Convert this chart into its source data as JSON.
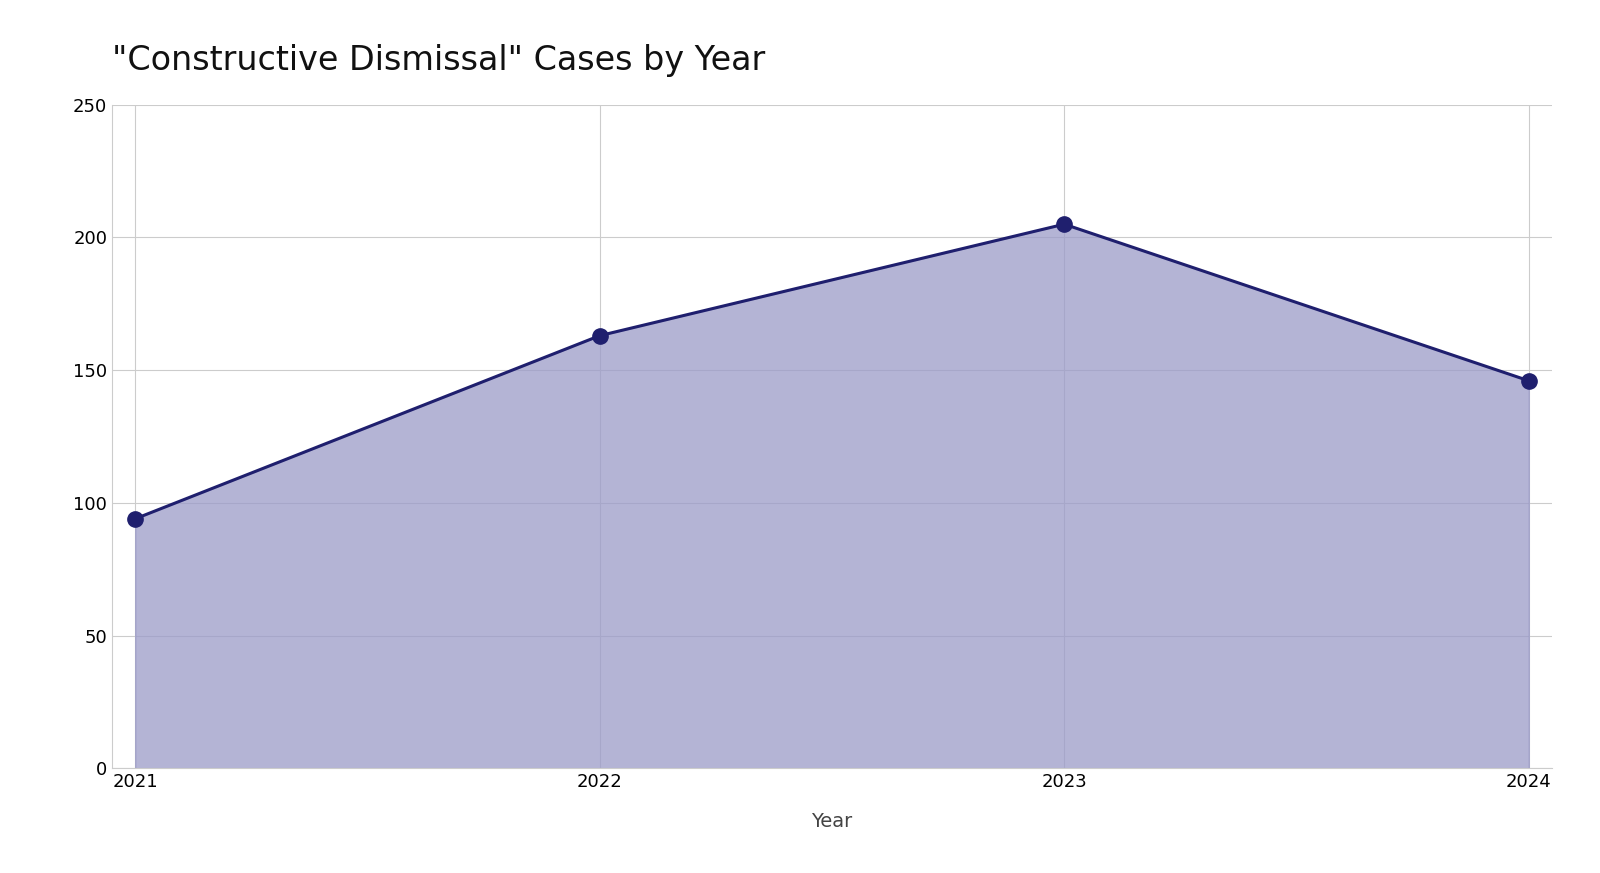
{
  "title": "\"Constructive Dismissal\" Cases by Year",
  "xlabel": "Year",
  "ylabel": "",
  "years": [
    2021,
    2022,
    2023,
    2024
  ],
  "values": [
    94,
    163,
    205,
    146
  ],
  "ylim": [
    0,
    250
  ],
  "yticks": [
    0,
    50,
    100,
    150,
    200,
    250
  ],
  "line_color": "#1f1f6e",
  "fill_color": "#9b9bc8",
  "fill_alpha": 0.75,
  "marker_size": 11,
  "marker_color": "#1f1f6e",
  "grid_color": "#cccccc",
  "background_color": "#ffffff",
  "title_fontsize": 24,
  "axis_label_fontsize": 14,
  "tick_fontsize": 13,
  "line_width": 2.2
}
